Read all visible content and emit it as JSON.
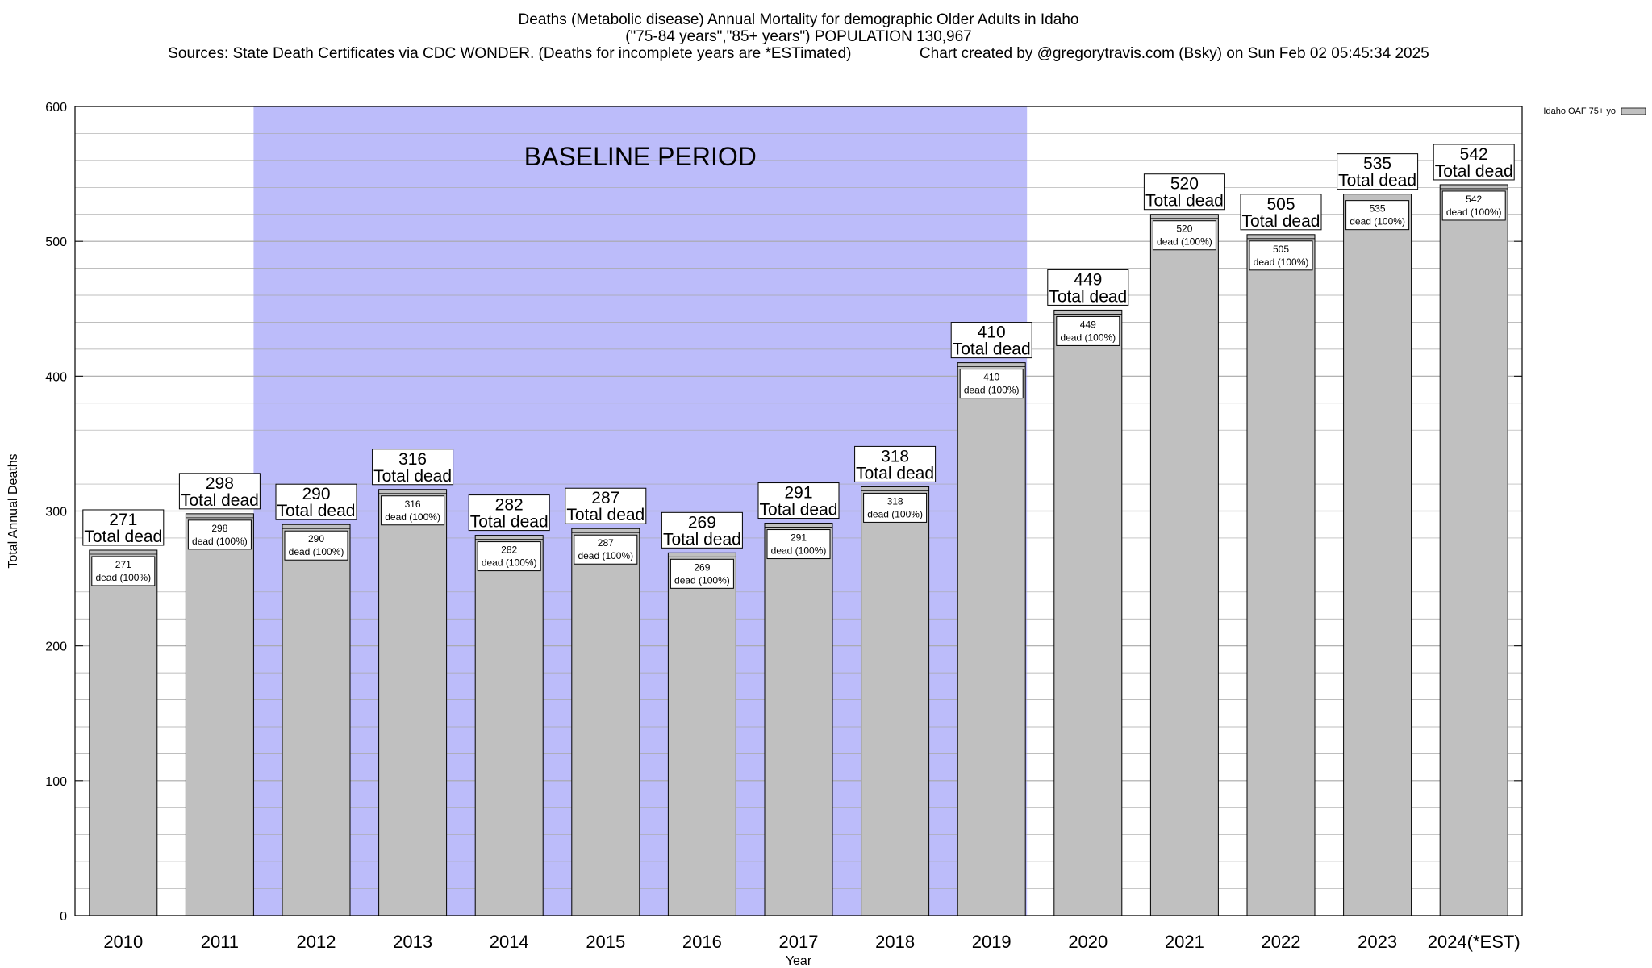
{
  "chart_data": {
    "type": "bar",
    "title_lines": [
      "Deaths (Metabolic disease) Annual Mortality for demographic Older Adults in Idaho",
      "(\"75-84 years\",\"85+ years\") POPULATION 130,967",
      "Sources: State Death Certificates via CDC WONDER. (Deaths for incomplete years are *ESTimated)                Chart created by @gregorytravis.com (Bsky) on Sun Feb 02 05:45:34 2025"
    ],
    "xlabel": "Year",
    "ylabel": "Total Annual Deaths",
    "ylim": [
      0,
      600
    ],
    "yticks": [
      0,
      100,
      200,
      300,
      400,
      500,
      600
    ],
    "grid": true,
    "legend": {
      "placement": "top-right",
      "label": "Idaho OAF 75+ yo"
    },
    "categories": [
      "2010",
      "2011",
      "2012",
      "2013",
      "2014",
      "2015",
      "2016",
      "2017",
      "2018",
      "2019",
      "2020",
      "2021",
      "2022",
      "2023",
      "2024(*EST)"
    ],
    "values": [
      271,
      298,
      290,
      316,
      282,
      287,
      269,
      291,
      318,
      410,
      449,
      520,
      505,
      535,
      542
    ],
    "total_label": "Total dead",
    "inner_label": "dead (100%)",
    "baseline": {
      "label": "BASELINE PERIOD",
      "start": "2012",
      "end": "2019"
    },
    "colors": {
      "bar": "#c0c0c0",
      "baseline": "#bcbcfa",
      "grid": "#a8a8a8"
    }
  }
}
